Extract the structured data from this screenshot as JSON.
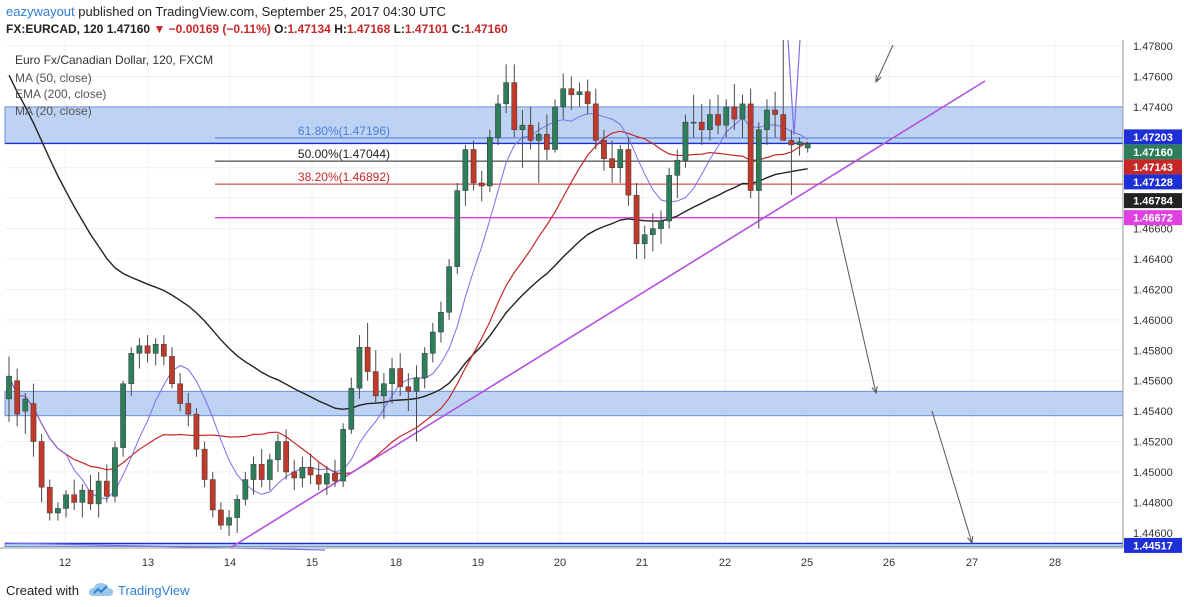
{
  "header": {
    "username": "eazywayout",
    "published_text": "published on TradingView.com, September 25, 2017 04:30 UTC",
    "symbol": "FX:EURCAD, 120",
    "last": "1.47160",
    "change": "−0.00169 (−0.11%)",
    "open_label": "O:",
    "open": "1.47134",
    "high_label": "H:",
    "high": "1.47168",
    "low_label": "L:",
    "low": "1.47101",
    "close_label": "C:",
    "close": "1.47160"
  },
  "legend": {
    "title": "Euro Fx/Canadian Dollar, 120, FXCM",
    "ma50": "MA (50, close)",
    "ema200": "EMA (200, close)",
    "ma20": "MA (20, close)"
  },
  "footer": {
    "created_with": "Created with",
    "brand": "TradingView"
  },
  "colors": {
    "up": "#2e7d5b",
    "down": "#c0392b",
    "zone": "#a8c4f0",
    "zone_border": "#6b8fd4",
    "ma50": "#c62828",
    "ema200": "#222222",
    "ma20": "#7b6fe8",
    "trendline": "#b44fe0",
    "horizontal_blue": "#1f2fd6",
    "magenta": "#e040e0"
  },
  "chart_data": {
    "type": "candlestick",
    "title": "Euro Fx/Canadian Dollar, 120, FXCM",
    "y_axis": {
      "ylim": [
        1.445,
        1.4784
      ],
      "tick_labels": [
        "1.44600",
        "1.44800",
        "1.45000",
        "1.45200",
        "1.45400",
        "1.45600",
        "1.45800",
        "1.46000",
        "1.46200",
        "1.46400",
        "1.46600",
        "1.46800",
        "1.47000",
        "1.47200",
        "1.47400",
        "1.47600",
        "1.47800"
      ],
      "tick_values": [
        1.446,
        1.448,
        1.45,
        1.452,
        1.454,
        1.456,
        1.458,
        1.46,
        1.462,
        1.464,
        1.466,
        1.468,
        1.47,
        1.472,
        1.474,
        1.476,
        1.478
      ]
    },
    "x_axis": {
      "tick_labels": [
        "12",
        "13",
        "14",
        "15",
        "18",
        "19",
        "20",
        "21",
        "22",
        "25",
        "26",
        "27",
        "28"
      ]
    },
    "price_badges": [
      {
        "label": "1.47203",
        "value": 1.47203,
        "color": "#1f2fd6"
      },
      {
        "label": "1.47160",
        "value": 1.4716,
        "color": "#2e7d5b"
      },
      {
        "label": "1.47143",
        "value": 1.47143,
        "color": "#c62828"
      },
      {
        "label": "1.47128",
        "value": 1.47128,
        "color": "#1f2fd6"
      },
      {
        "label": "1.46784",
        "value": 1.46784,
        "color": "#222222"
      },
      {
        "label": "1.46672",
        "value": 1.46672,
        "color": "#e040e0"
      },
      {
        "label": "1.44517",
        "value": 1.44517,
        "color": "#1f2fd6"
      }
    ],
    "fibonacci": [
      {
        "label": "61.80%(1.47196)",
        "value": 1.47196,
        "color": "#4a7fd6"
      },
      {
        "label": "50.00%(1.47044)",
        "value": 1.47044,
        "color": "#222222"
      },
      {
        "label": "38.20%(1.46892)",
        "value": 1.46892,
        "color": "#c62828"
      }
    ],
    "zones": [
      {
        "from": 1.4716,
        "to": 1.474
      },
      {
        "from": 1.4537,
        "to": 1.4553
      },
      {
        "from": 1.4451,
        "to": 1.4453
      }
    ],
    "horizontal_lines": [
      {
        "value": 1.4716,
        "color": "#1f2fd6"
      },
      {
        "value": 1.46672,
        "color": "#e040e0"
      },
      {
        "value": 1.4453,
        "color": "#1f2fd6"
      }
    ],
    "candles": [
      [
        1.4548,
        1.4576,
        1.4533,
        1.4563
      ],
      [
        1.456,
        1.4568,
        1.453,
        1.4538
      ],
      [
        1.454,
        1.4552,
        1.4525,
        1.4548
      ],
      [
        1.4545,
        1.4558,
        1.451,
        1.452
      ],
      [
        1.452,
        1.4525,
        1.448,
        1.449
      ],
      [
        1.449,
        1.4495,
        1.4468,
        1.4473
      ],
      [
        1.4473,
        1.448,
        1.4468,
        1.4476
      ],
      [
        1.4476,
        1.4488,
        1.447,
        1.4485
      ],
      [
        1.4485,
        1.4495,
        1.4475,
        1.448
      ],
      [
        1.448,
        1.4492,
        1.447,
        1.4488
      ],
      [
        1.4488,
        1.4498,
        1.4475,
        1.4479
      ],
      [
        1.4479,
        1.45,
        1.447,
        1.4494
      ],
      [
        1.4494,
        1.4505,
        1.448,
        1.4484
      ],
      [
        1.4484,
        1.452,
        1.448,
        1.4516
      ],
      [
        1.4516,
        1.456,
        1.451,
        1.4558
      ],
      [
        1.4558,
        1.4582,
        1.455,
        1.4578
      ],
      [
        1.4578,
        1.4588,
        1.4568,
        1.4583
      ],
      [
        1.4583,
        1.459,
        1.4572,
        1.4578
      ],
      [
        1.4578,
        1.4588,
        1.457,
        1.4584
      ],
      [
        1.4584,
        1.459,
        1.457,
        1.4576
      ],
      [
        1.4576,
        1.4582,
        1.4555,
        1.4558
      ],
      [
        1.4558,
        1.4565,
        1.454,
        1.4545
      ],
      [
        1.4545,
        1.4552,
        1.453,
        1.4538
      ],
      [
        1.4538,
        1.4542,
        1.451,
        1.4515
      ],
      [
        1.4515,
        1.452,
        1.449,
        1.4495
      ],
      [
        1.4495,
        1.45,
        1.447,
        1.4475
      ],
      [
        1.4475,
        1.448,
        1.4462,
        1.4465
      ],
      [
        1.4465,
        1.4475,
        1.4458,
        1.447
      ],
      [
        1.447,
        1.4485,
        1.446,
        1.4482
      ],
      [
        1.4482,
        1.45,
        1.4478,
        1.4495
      ],
      [
        1.4495,
        1.451,
        1.4485,
        1.4505
      ],
      [
        1.4505,
        1.4515,
        1.449,
        1.4495
      ],
      [
        1.4495,
        1.4512,
        1.4488,
        1.4508
      ],
      [
        1.4508,
        1.4525,
        1.45,
        1.452
      ],
      [
        1.452,
        1.4528,
        1.4495,
        1.45
      ],
      [
        1.45,
        1.4508,
        1.4488,
        1.4496
      ],
      [
        1.4496,
        1.451,
        1.449,
        1.4503
      ],
      [
        1.4503,
        1.4512,
        1.4492,
        1.4498
      ],
      [
        1.4498,
        1.4506,
        1.4488,
        1.4492
      ],
      [
        1.4492,
        1.4504,
        1.4485,
        1.4499
      ],
      [
        1.4499,
        1.4508,
        1.449,
        1.4494
      ],
      [
        1.4494,
        1.4532,
        1.449,
        1.4528
      ],
      [
        1.4528,
        1.4562,
        1.4525,
        1.4555
      ],
      [
        1.4555,
        1.459,
        1.4548,
        1.4582
      ],
      [
        1.4582,
        1.4598,
        1.456,
        1.4566
      ],
      [
        1.4566,
        1.458,
        1.4545,
        1.455
      ],
      [
        1.455,
        1.4565,
        1.4535,
        1.4558
      ],
      [
        1.4558,
        1.4575,
        1.4545,
        1.4568
      ],
      [
        1.4568,
        1.4578,
        1.455,
        1.4556
      ],
      [
        1.4556,
        1.4565,
        1.454,
        1.4553
      ],
      [
        1.4553,
        1.457,
        1.452,
        1.4562
      ],
      [
        1.4562,
        1.4582,
        1.4555,
        1.4578
      ],
      [
        1.4578,
        1.4598,
        1.4572,
        1.4592
      ],
      [
        1.4592,
        1.4612,
        1.4585,
        1.4605
      ],
      [
        1.4605,
        1.464,
        1.46,
        1.4635
      ],
      [
        1.4635,
        1.469,
        1.463,
        1.4685
      ],
      [
        1.4685,
        1.4715,
        1.4675,
        1.4712
      ],
      [
        1.4712,
        1.4718,
        1.4685,
        1.469
      ],
      [
        1.469,
        1.4698,
        1.4678,
        1.4688
      ],
      [
        1.4688,
        1.4725,
        1.4684,
        1.472
      ],
      [
        1.472,
        1.4748,
        1.4715,
        1.4742
      ],
      [
        1.4742,
        1.4768,
        1.4736,
        1.4756
      ],
      [
        1.4756,
        1.4768,
        1.472,
        1.4725
      ],
      [
        1.4725,
        1.4738,
        1.47,
        1.4728
      ],
      [
        1.4728,
        1.474,
        1.4712,
        1.4718
      ],
      [
        1.4718,
        1.473,
        1.469,
        1.4722
      ],
      [
        1.4722,
        1.4735,
        1.4705,
        1.4712
      ],
      [
        1.4712,
        1.4745,
        1.471,
        1.474
      ],
      [
        1.474,
        1.4762,
        1.4732,
        1.4752
      ],
      [
        1.4752,
        1.476,
        1.4738,
        1.4748
      ],
      [
        1.4748,
        1.4756,
        1.474,
        1.475
      ],
      [
        1.475,
        1.4758,
        1.4735,
        1.4742
      ],
      [
        1.4742,
        1.4752,
        1.4712,
        1.4718
      ],
      [
        1.4718,
        1.4725,
        1.4698,
        1.4706
      ],
      [
        1.4706,
        1.4718,
        1.469,
        1.47
      ],
      [
        1.47,
        1.4715,
        1.469,
        1.4712
      ],
      [
        1.4712,
        1.472,
        1.4675,
        1.4682
      ],
      [
        1.4682,
        1.469,
        1.464,
        1.465
      ],
      [
        1.465,
        1.4662,
        1.464,
        1.4656
      ],
      [
        1.4656,
        1.467,
        1.4645,
        1.466
      ],
      [
        1.466,
        1.4672,
        1.465,
        1.4665
      ],
      [
        1.4665,
        1.47,
        1.466,
        1.4695
      ],
      [
        1.4695,
        1.4712,
        1.468,
        1.4705
      ],
      [
        1.4705,
        1.4735,
        1.47,
        1.473
      ],
      [
        1.473,
        1.4748,
        1.472,
        1.473
      ],
      [
        1.473,
        1.4742,
        1.4715,
        1.4725
      ],
      [
        1.4725,
        1.4745,
        1.4718,
        1.4735
      ],
      [
        1.4735,
        1.4748,
        1.4722,
        1.4728
      ],
      [
        1.4728,
        1.4745,
        1.472,
        1.474
      ],
      [
        1.474,
        1.4755,
        1.4725,
        1.4732
      ],
      [
        1.4732,
        1.4748,
        1.472,
        1.4742
      ],
      [
        1.4742,
        1.4752,
        1.468,
        1.4685
      ],
      [
        1.4685,
        1.473,
        1.466,
        1.4725
      ],
      [
        1.4725,
        1.4745,
        1.4715,
        1.4738
      ],
      [
        1.4738,
        1.475,
        1.472,
        1.4735
      ],
      [
        1.4735,
        1.48,
        1.472,
        1.4718
      ],
      [
        1.4718,
        1.4725,
        1.4682,
        1.4715
      ],
      [
        1.4715,
        1.472,
        1.4708,
        1.4717
      ],
      [
        1.4713,
        1.4717,
        1.471,
        1.4716
      ]
    ]
  }
}
